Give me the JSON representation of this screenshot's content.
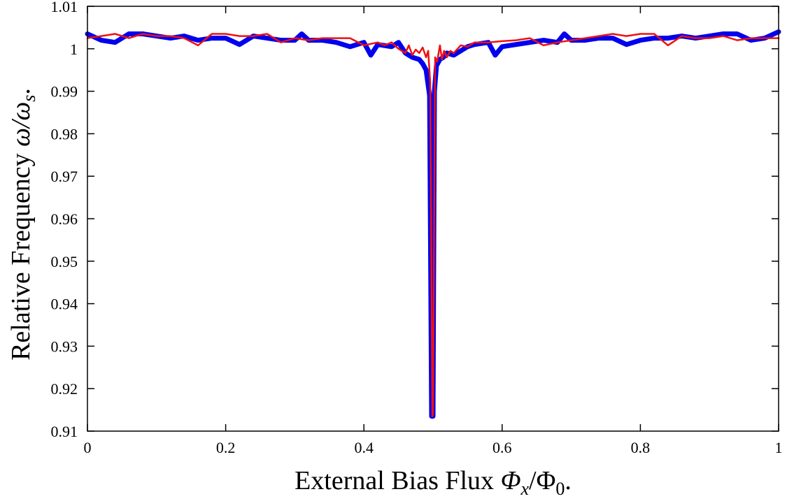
{
  "chart_data": {
    "type": "line",
    "title": "",
    "xlabel_text": "External Bias Flux ",
    "xlabel_math": "Φ",
    "xlabel_sub1": "x",
    "xlabel_mid": "/Φ",
    "xlabel_sub2": "0",
    "xlabel_end": ".",
    "ylabel_text": "Relative Frequency ",
    "ylabel_math": "ω/ω",
    "ylabel_sub": "s",
    "ylabel_end": ".",
    "xlim": [
      0,
      1
    ],
    "ylim": [
      0.91,
      1.01
    ],
    "xticks": [
      0,
      0.2,
      0.4,
      0.6,
      0.8,
      1
    ],
    "xtick_labels": [
      "0",
      "0.2",
      "0.4",
      "0.6",
      "0.8",
      "1"
    ],
    "yticks": [
      0.91,
      0.92,
      0.93,
      0.94,
      0.95,
      0.96,
      0.97,
      0.98,
      0.99,
      1,
      1.01
    ],
    "ytick_labels": [
      "0.91",
      "0.92",
      "0.93",
      "0.94",
      "0.95",
      "0.96",
      "0.97",
      "0.98",
      "0.99",
      "1",
      "1.01"
    ],
    "grid": false,
    "series": [
      {
        "color": "#0000ee",
        "x": [
          0,
          0.02,
          0.04,
          0.06,
          0.08,
          0.1,
          0.12,
          0.14,
          0.16,
          0.18,
          0.2,
          0.22,
          0.24,
          0.26,
          0.28,
          0.3,
          0.31,
          0.32,
          0.34,
          0.36,
          0.38,
          0.4,
          0.41,
          0.42,
          0.44,
          0.45,
          0.46,
          0.47,
          0.48,
          0.485,
          0.49,
          0.495,
          0.498,
          0.5,
          0.502,
          0.505,
          0.51,
          0.515,
          0.52,
          0.53,
          0.54,
          0.55,
          0.56,
          0.58,
          0.59,
          0.6,
          0.62,
          0.64,
          0.66,
          0.68,
          0.69,
          0.7,
          0.72,
          0.74,
          0.76,
          0.78,
          0.8,
          0.82,
          0.84,
          0.86,
          0.88,
          0.9,
          0.92,
          0.94,
          0.96,
          0.98,
          1
        ],
        "y": [
          1.0035,
          1.002,
          1.0015,
          1.0035,
          1.0035,
          1.003,
          1.0025,
          1.003,
          1.002,
          1.0025,
          1.0025,
          1.001,
          1.003,
          1.0025,
          1.002,
          1.002,
          1.0035,
          1.002,
          1.002,
          1.0015,
          1.0005,
          1.0015,
          0.9985,
          1.001,
          1.0005,
          1.0015,
          0.999,
          0.998,
          0.9975,
          0.9965,
          0.995,
          0.989,
          0.9135,
          0.9135,
          0.99,
          0.996,
          0.9975,
          0.998,
          0.999,
          0.9985,
          0.9995,
          1.0005,
          1.001,
          1.0015,
          0.9985,
          1.0005,
          1.001,
          1.0015,
          1.002,
          1.0015,
          1.0035,
          1.002,
          1.002,
          1.0025,
          1.0025,
          1.001,
          1.002,
          1.0025,
          1.0025,
          1.003,
          1.0025,
          1.003,
          1.0035,
          1.0035,
          1.002,
          1.0025,
          1.004
        ]
      },
      {
        "color": "#ee1111",
        "x": [
          0,
          0.02,
          0.04,
          0.06,
          0.08,
          0.1,
          0.12,
          0.14,
          0.16,
          0.18,
          0.2,
          0.22,
          0.24,
          0.26,
          0.28,
          0.3,
          0.32,
          0.34,
          0.36,
          0.38,
          0.4,
          0.42,
          0.43,
          0.44,
          0.45,
          0.46,
          0.465,
          0.47,
          0.475,
          0.48,
          0.485,
          0.49,
          0.493,
          0.496,
          0.499,
          0.5,
          0.503,
          0.506,
          0.51,
          0.513,
          0.516,
          0.52,
          0.525,
          0.53,
          0.54,
          0.55,
          0.56,
          0.58,
          0.6,
          0.62,
          0.64,
          0.66,
          0.68,
          0.7,
          0.72,
          0.74,
          0.76,
          0.78,
          0.8,
          0.82,
          0.84,
          0.86,
          0.88,
          0.9,
          0.92,
          0.94,
          0.96,
          0.98,
          1
        ],
        "y": [
          1.0025,
          1.003,
          1.0035,
          1.0025,
          1.0035,
          1.003,
          1.003,
          1.0025,
          1.0008,
          1.0035,
          1.0035,
          1.003,
          1.003,
          1.0035,
          1.0015,
          1.0025,
          1.002,
          1.0025,
          1.0025,
          1.0025,
          1.0008,
          1.0015,
          1.0008,
          1.0015,
          1.0,
          0.999,
          1.0008,
          0.9985,
          0.9998,
          0.999,
          1.0003,
          0.998,
          0.9995,
          0.992,
          0.9135,
          0.914,
          0.998,
          0.997,
          1.0008,
          0.9975,
          0.9995,
          0.998,
          0.9995,
          0.999,
          1.0008,
          1.0005,
          1.0015,
          1.0015,
          1.0018,
          1.002,
          1.0025,
          1.0008,
          1.0015,
          1.002,
          1.0025,
          1.003,
          1.0035,
          1.003,
          1.0035,
          1.0035,
          1.0008,
          1.003,
          1.0025,
          1.0025,
          1.003,
          1.002,
          1.0025,
          1.0025,
          1.0025
        ]
      }
    ]
  }
}
